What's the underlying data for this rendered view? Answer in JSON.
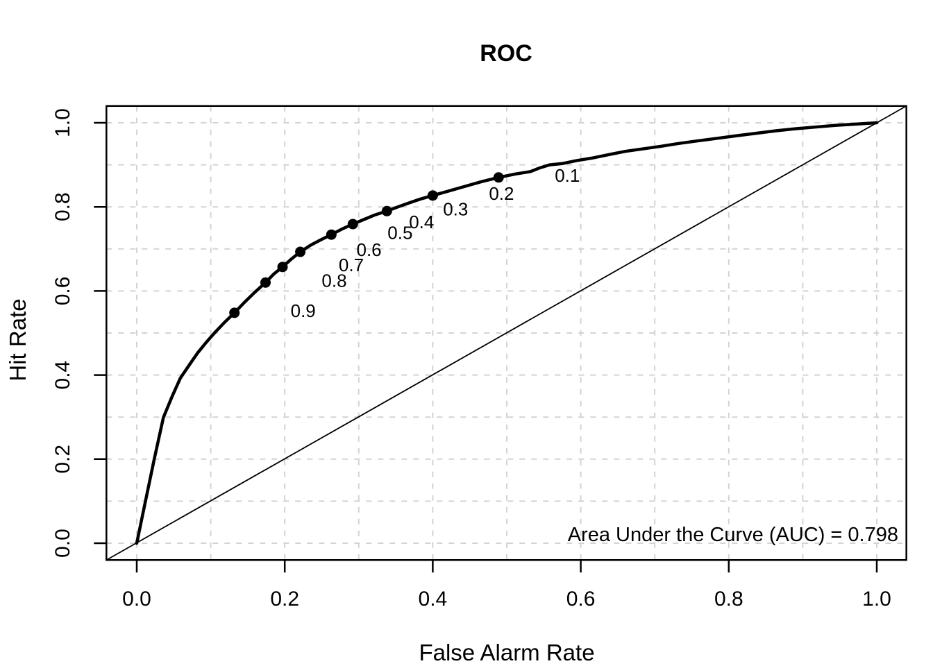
{
  "chart_data": {
    "type": "line",
    "title": "ROC",
    "xlabel": "False Alarm Rate",
    "ylabel": "Hit Rate",
    "annotation": "Area Under the Curve (AUC) = 0.798",
    "auc": 0.798,
    "xlim": [
      -0.041,
      1.04
    ],
    "ylim": [
      -0.04,
      1.04
    ],
    "x_tick_values": [
      0.0,
      0.2,
      0.4,
      0.6,
      0.8,
      1.0
    ],
    "x_tick_labels": [
      "0.0",
      "0.2",
      "0.4",
      "0.6",
      "0.8",
      "1.0"
    ],
    "y_tick_values": [
      0.0,
      0.2,
      0.4,
      0.6,
      0.8,
      1.0
    ],
    "y_tick_labels": [
      "0.0",
      "0.2",
      "0.4",
      "0.6",
      "0.8",
      "1.0"
    ],
    "grid": {
      "step": 0.1,
      "style": "dashed",
      "on": true
    },
    "legend": "none",
    "series": [
      {
        "name": "ROC curve",
        "style": "thick-solid",
        "points": [
          [
            0.0,
            0.0
          ],
          [
            0.012,
            0.102
          ],
          [
            0.024,
            0.203
          ],
          [
            0.036,
            0.299
          ],
          [
            0.048,
            0.35
          ],
          [
            0.059,
            0.393
          ],
          [
            0.071,
            0.424
          ],
          [
            0.082,
            0.452
          ],
          [
            0.094,
            0.478
          ],
          [
            0.106,
            0.502
          ],
          [
            0.119,
            0.526
          ],
          [
            0.132,
            0.548
          ],
          [
            0.145,
            0.572
          ],
          [
            0.159,
            0.596
          ],
          [
            0.174,
            0.62
          ],
          [
            0.185,
            0.64
          ],
          [
            0.197,
            0.657
          ],
          [
            0.209,
            0.676
          ],
          [
            0.221,
            0.693
          ],
          [
            0.235,
            0.709
          ],
          [
            0.249,
            0.722
          ],
          [
            0.263,
            0.734
          ],
          [
            0.277,
            0.747
          ],
          [
            0.292,
            0.759
          ],
          [
            0.307,
            0.77
          ],
          [
            0.322,
            0.781
          ],
          [
            0.338,
            0.79
          ],
          [
            0.353,
            0.8
          ],
          [
            0.369,
            0.81
          ],
          [
            0.384,
            0.819
          ],
          [
            0.4,
            0.827
          ],
          [
            0.422,
            0.838
          ],
          [
            0.444,
            0.849
          ],
          [
            0.466,
            0.86
          ],
          [
            0.489,
            0.87
          ],
          [
            0.511,
            0.878
          ],
          [
            0.532,
            0.884
          ],
          [
            0.545,
            0.893
          ],
          [
            0.558,
            0.9
          ],
          [
            0.575,
            0.903
          ],
          [
            0.594,
            0.91
          ],
          [
            0.615,
            0.916
          ],
          [
            0.637,
            0.924
          ],
          [
            0.66,
            0.932
          ],
          [
            0.684,
            0.938
          ],
          [
            0.708,
            0.944
          ],
          [
            0.733,
            0.951
          ],
          [
            0.758,
            0.957
          ],
          [
            0.784,
            0.963
          ],
          [
            0.81,
            0.969
          ],
          [
            0.837,
            0.975
          ],
          [
            0.864,
            0.981
          ],
          [
            0.891,
            0.986
          ],
          [
            0.918,
            0.99
          ],
          [
            0.945,
            0.994
          ],
          [
            0.972,
            0.997
          ],
          [
            1.0,
            1.0
          ]
        ]
      },
      {
        "name": "chance diagonal",
        "style": "thin-solid",
        "points": [
          [
            0.0,
            0.0
          ],
          [
            1.0,
            1.0
          ]
        ]
      }
    ],
    "threshold_points": [
      {
        "label": "0.1",
        "x": 0.489,
        "y": 0.87
      },
      {
        "label": "0.2",
        "x": 0.4,
        "y": 0.827
      },
      {
        "label": "0.3",
        "x": 0.338,
        "y": 0.79
      },
      {
        "label": "0.4",
        "x": 0.292,
        "y": 0.759
      },
      {
        "label": "0.5",
        "x": 0.263,
        "y": 0.734
      },
      {
        "label": "0.6",
        "x": 0.221,
        "y": 0.693
      },
      {
        "label": "0.7",
        "x": 0.197,
        "y": 0.657
      },
      {
        "label": "0.8",
        "x": 0.174,
        "y": 0.62
      },
      {
        "label": "0.9",
        "x": 0.132,
        "y": 0.548
      }
    ],
    "colors": {
      "background": "#ffffff",
      "curve": "#000000",
      "diagonal": "#000000",
      "grid": "#d3d3d3",
      "text": "#000000",
      "box": "#000000"
    }
  }
}
